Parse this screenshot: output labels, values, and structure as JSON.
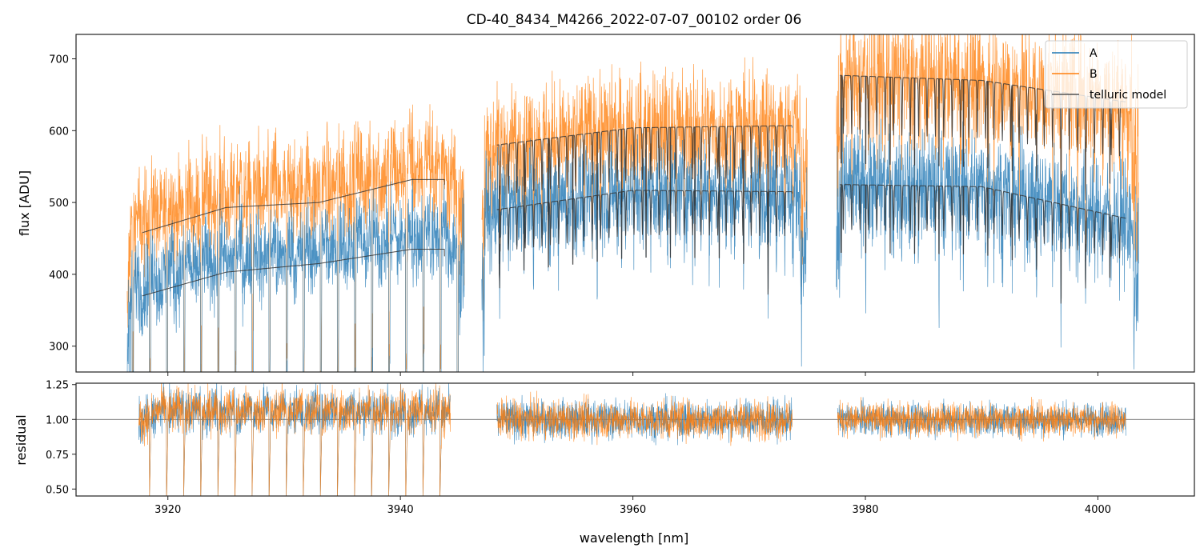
{
  "chart_data": [
    {
      "type": "line",
      "panel": "flux",
      "title": "CD-40_8434_M4266_2022-07-07_00102  order 06",
      "xlabel": "",
      "ylabel": "flux [ADU]",
      "xlim": [
        3912.1,
        4008.3
      ],
      "ylim": [
        264,
        734
      ],
      "xticks": [
        3920,
        3940,
        3960,
        3980,
        4000
      ],
      "yticks": [
        300,
        400,
        500,
        600,
        700
      ],
      "ytick_labels": [
        "300",
        "400",
        "500",
        "600",
        "700"
      ],
      "legend": {
        "placement": "top-right",
        "entries": [
          "A",
          "B",
          "telluric model"
        ]
      },
      "segments": [
        [
          3916.5,
          3945.5
        ],
        [
          3947.0,
          3975.0
        ],
        [
          3977.5,
          4003.5
        ]
      ],
      "model_segments": [
        [
          3917.8,
          3943.8
        ],
        [
          3948.3,
          3973.7
        ],
        [
          3977.8,
          4002.4
        ]
      ],
      "series": [
        {
          "name": "A",
          "color": "#1f77b4",
          "noise": [
            30,
            35,
            40
          ],
          "continuum_knots": [
            [
              3917.8,
              370
            ],
            [
              3925,
              403
            ],
            [
              3933,
              415
            ],
            [
              3941,
              435
            ],
            [
              3943.8,
              425
            ],
            [
              3948.3,
              490
            ],
            [
              3960,
              517
            ],
            [
              3973.7,
              515
            ],
            [
              3977.8,
              525
            ],
            [
              3990,
              522
            ],
            [
              4002.4,
              478
            ]
          ]
        },
        {
          "name": "B",
          "color": "#ff7f0e",
          "noise": [
            35,
            40,
            45
          ],
          "continuum_knots": [
            [
              3917.8,
              458
            ],
            [
              3925,
              493
            ],
            [
              3933,
              500
            ],
            [
              3941,
              532
            ],
            [
              3943.8,
              525
            ],
            [
              3948.3,
              580
            ],
            [
              3960,
              604
            ],
            [
              3973.7,
              607
            ],
            [
              3977.8,
              677
            ],
            [
              3990,
              670
            ],
            [
              4002.4,
              640
            ]
          ]
        },
        {
          "name": "telluric model",
          "color": "#333333"
        }
      ]
    },
    {
      "type": "line",
      "panel": "residual",
      "xlabel": "wavelength [nm]",
      "ylabel": "residual",
      "xlim": [
        3912.1,
        4008.3
      ],
      "ylim": [
        0.45,
        1.26
      ],
      "xticks": [
        3920,
        3940,
        3960,
        3980,
        4000
      ],
      "xtick_labels": [
        "3920",
        "3940",
        "3960",
        "3980",
        "4000"
      ],
      "yticks": [
        0.5,
        0.75,
        1.0,
        1.25
      ],
      "ytick_labels": [
        "0.50",
        "0.75",
        "1.00",
        "1.25"
      ],
      "reference_line": 1.0,
      "segments": [
        [
          3917.5,
          3944.3
        ],
        [
          3948.3,
          3973.7
        ],
        [
          3977.6,
          4002.4
        ]
      ],
      "segment_means": [
        1.1,
        1.0,
        1.0
      ],
      "noise": [
        0.08,
        0.07,
        0.06
      ],
      "series": [
        {
          "name": "A",
          "color": "#1f77b4"
        },
        {
          "name": "B",
          "color": "#ff7f0e"
        }
      ]
    }
  ]
}
